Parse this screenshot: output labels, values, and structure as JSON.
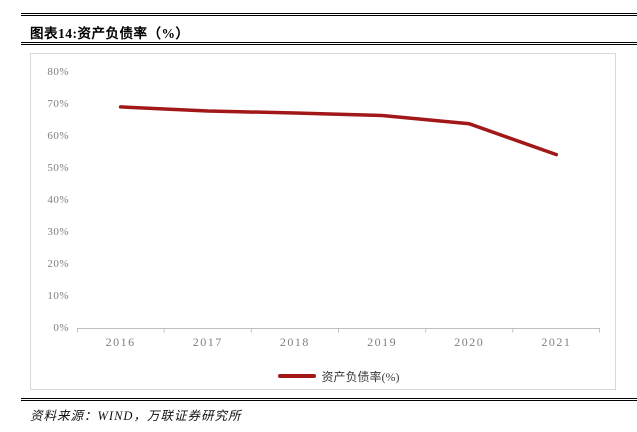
{
  "title": "图表14:资产负债率（%）",
  "source": "资料来源：WIND，万联证券研究所",
  "chart_data": {
    "type": "line",
    "title": "图表14:资产负债率（%）",
    "categories": [
      "2016",
      "2017",
      "2018",
      "2019",
      "2020",
      "2021"
    ],
    "series": [
      {
        "name": "资产负债率(%)",
        "values": [
          69.1,
          67.8,
          67.2,
          66.4,
          63.8,
          54.2
        ]
      }
    ],
    "xlabel": "",
    "ylabel": "",
    "ylim": [
      0,
      80
    ],
    "y_tick_step": 10,
    "y_tick_labels": [
      "0%",
      "10%",
      "20%",
      "30%",
      "40%",
      "50%",
      "60%",
      "70%",
      "80%"
    ],
    "grid": false,
    "legend": {
      "label": "资产负债率(%)",
      "position": "bottom-center"
    },
    "colors": {
      "line": "#A21818",
      "axis_line": "#bfbfbf",
      "tick_label": "#7f7f7f",
      "card_border": "#d8d8d8"
    }
  }
}
